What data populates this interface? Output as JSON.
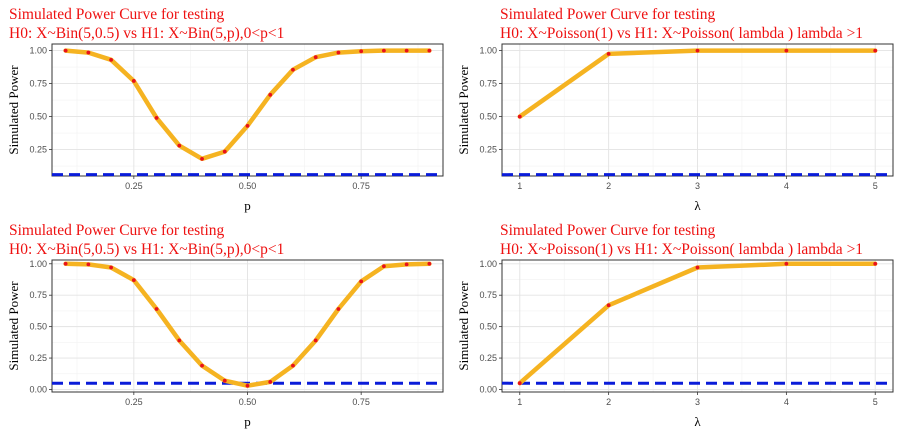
{
  "chart_data": [
    {
      "type": "line",
      "title": "Simulated Power Curve for testing",
      "subtitle": "H0:  X~Bin(5,0.5)  vs H1:  X~Bin(5,p),0<p<1",
      "xlabel": "p",
      "ylabel": "Simulated Power",
      "xlim": [
        0.07,
        0.93
      ],
      "ylim": [
        0.05,
        1.05
      ],
      "xticks": [
        0.25,
        0.5,
        0.75
      ],
      "xtick_labels": [
        "0.25",
        "0.50",
        "0.75"
      ],
      "yticks": [
        0.25,
        0.5,
        0.75,
        1.0
      ],
      "ytick_labels": [
        "0.25",
        "0.50",
        "0.75",
        "1.00"
      ],
      "grid": true,
      "x": [
        0.1,
        0.15,
        0.2,
        0.25,
        0.3,
        0.35,
        0.4,
        0.45,
        0.5,
        0.55,
        0.6,
        0.65,
        0.7,
        0.75,
        0.8,
        0.85,
        0.9
      ],
      "values": [
        1.0,
        0.985,
        0.93,
        0.77,
        0.49,
        0.28,
        0.18,
        0.235,
        0.43,
        0.665,
        0.855,
        0.95,
        0.985,
        0.995,
        1.0,
        1.0,
        1.0
      ],
      "reference_line": 0.06,
      "colors": {
        "line": "#f5b321",
        "points": "#e8111b",
        "reference": "#0a1cd9"
      }
    },
    {
      "type": "line",
      "title": "Simulated Power Curve for testing",
      "subtitle": "H0:  X~Poisson(1)  vs H1:  X~Poisson( lambda ) lambda >1",
      "xlabel": "λ",
      "ylabel": "Simulated Power",
      "xlim": [
        0.8,
        5.2
      ],
      "ylim": [
        0.05,
        1.05
      ],
      "xticks": [
        1,
        2,
        3,
        4,
        5
      ],
      "xtick_labels": [
        "1",
        "2",
        "3",
        "4",
        "5"
      ],
      "yticks": [
        0.25,
        0.5,
        0.75,
        1.0
      ],
      "ytick_labels": [
        "0.25",
        "0.50",
        "0.75",
        "1.00"
      ],
      "grid": true,
      "x": [
        1,
        2,
        3,
        4,
        5
      ],
      "values": [
        0.5,
        0.975,
        1.0,
        1.0,
        1.0
      ],
      "reference_line": 0.06,
      "colors": {
        "line": "#f5b321",
        "points": "#e8111b",
        "reference": "#0a1cd9"
      }
    },
    {
      "type": "line",
      "title": "Simulated Power Curve for testing",
      "subtitle": "H0:  X~Bin(5,0.5)  vs H1:  X~Bin(5,p),0<p<1",
      "xlabel": "p",
      "ylabel": "Simulated Power",
      "xlim": [
        0.07,
        0.93
      ],
      "ylim": [
        -0.02,
        1.03
      ],
      "xticks": [
        0.25,
        0.5,
        0.75
      ],
      "xtick_labels": [
        "0.25",
        "0.50",
        "0.75"
      ],
      "yticks": [
        0.0,
        0.25,
        0.5,
        0.75,
        1.0
      ],
      "ytick_labels": [
        "0.00",
        "0.25",
        "0.50",
        "0.75",
        "1.00"
      ],
      "grid": true,
      "x": [
        0.1,
        0.15,
        0.2,
        0.25,
        0.3,
        0.35,
        0.4,
        0.45,
        0.5,
        0.55,
        0.6,
        0.65,
        0.7,
        0.75,
        0.8,
        0.85,
        0.9
      ],
      "values": [
        1.0,
        0.995,
        0.97,
        0.87,
        0.64,
        0.39,
        0.19,
        0.07,
        0.03,
        0.06,
        0.19,
        0.39,
        0.64,
        0.86,
        0.98,
        0.995,
        1.0
      ],
      "reference_line": 0.05,
      "colors": {
        "line": "#f5b321",
        "points": "#e8111b",
        "reference": "#0a1cd9"
      }
    },
    {
      "type": "line",
      "title": "Simulated Power Curve for testing",
      "subtitle": "H0:  X~Poisson(1)  vs H1:  X~Poisson( lambda ) lambda >1",
      "xlabel": "λ",
      "ylabel": "Simulated Power",
      "xlim": [
        0.8,
        5.2
      ],
      "ylim": [
        -0.02,
        1.03
      ],
      "xticks": [
        1,
        2,
        3,
        4,
        5
      ],
      "xtick_labels": [
        "1",
        "2",
        "3",
        "4",
        "5"
      ],
      "yticks": [
        0.0,
        0.25,
        0.5,
        0.75,
        1.0
      ],
      "ytick_labels": [
        "0.00",
        "0.25",
        "0.50",
        "0.75",
        "1.00"
      ],
      "grid": true,
      "x": [
        1,
        2,
        3,
        4,
        5
      ],
      "values": [
        0.05,
        0.67,
        0.97,
        1.0,
        1.0
      ],
      "reference_line": 0.05,
      "colors": {
        "line": "#f5b321",
        "points": "#e8111b",
        "reference": "#0a1cd9"
      }
    }
  ]
}
